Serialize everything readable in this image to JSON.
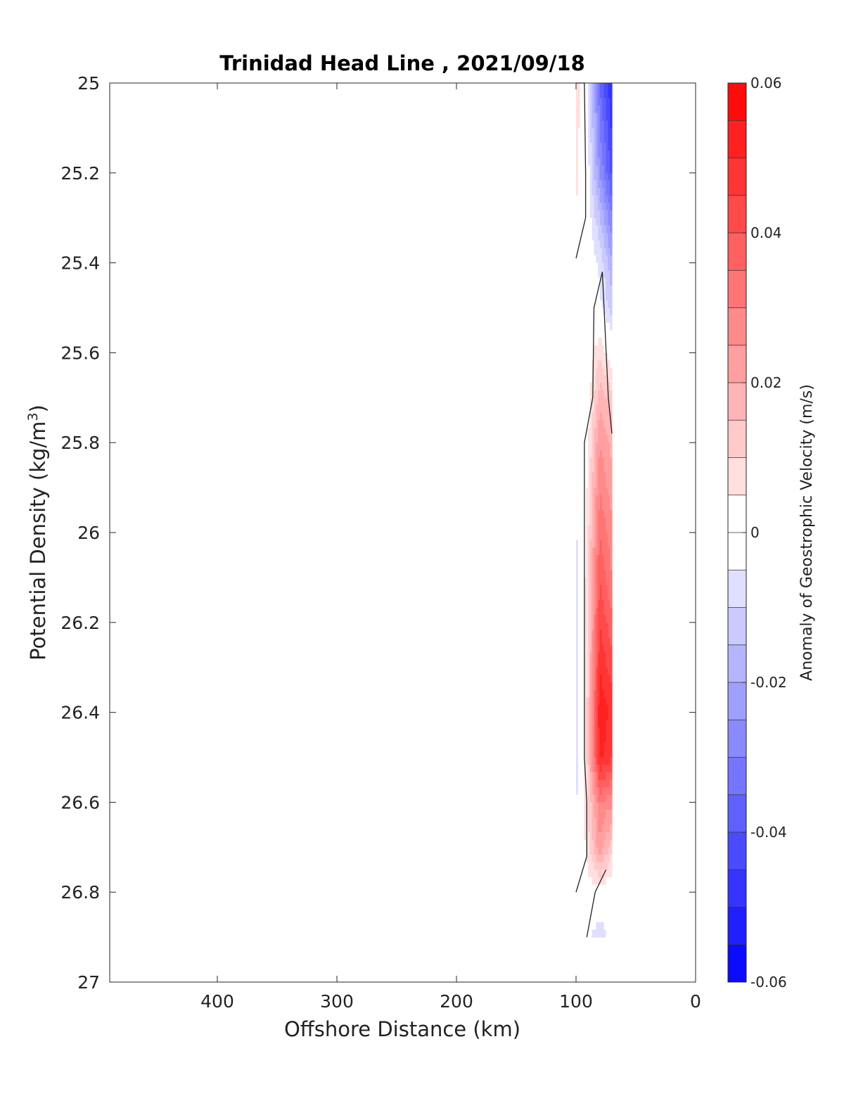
{
  "chart_data": {
    "type": "heatmap",
    "title": "Trinidad Head Line , 2021/09/18",
    "xlabel": "Offshore Distance (km)",
    "ylabel_main": "Potential Density (kg/m",
    "ylabel_sup": "3",
    "ylabel_close": ")",
    "xlim": [
      490,
      0
    ],
    "ylim": [
      25,
      27
    ],
    "x_reversed": true,
    "y_reversed": true,
    "xticks": [
      400,
      300,
      200,
      100,
      0
    ],
    "yticks": [
      25,
      25.2,
      25.4,
      25.6,
      25.8,
      26,
      26.2,
      26.4,
      26.6,
      26.8,
      27
    ],
    "ytick_labels": [
      "25",
      "25.2",
      "25.4",
      "25.6",
      "25.8",
      "26",
      "26.2",
      "26.4",
      "26.6",
      "26.8",
      "27"
    ],
    "colorbar": {
      "label": "Anomaly of Geostrophic Velocity (m/s)",
      "range": [
        -0.06,
        0.06
      ],
      "levels": 24,
      "ticks": [
        0.06,
        0.04,
        0.02,
        0,
        -0.02,
        -0.04,
        -0.06
      ],
      "tick_labels": [
        "0.06",
        "0.04",
        "0.02",
        "0",
        "-0.02",
        "-0.04",
        "-0.06"
      ],
      "colormap": "blue-white-red",
      "color_min": "#0000ff",
      "color_zero": "#ffffff",
      "color_max": "#ff0000"
    },
    "x_grid": [
      100,
      90,
      80,
      70
    ],
    "y_grid": [
      25.0,
      25.1,
      25.2,
      25.3,
      25.4,
      25.5,
      25.6,
      25.7,
      25.8,
      25.9,
      26.0,
      26.1,
      26.2,
      26.3,
      26.4,
      26.5,
      26.6,
      26.7,
      26.8,
      26.9
    ],
    "values": [
      [
        0.01,
        -0.005,
        -0.035,
        -0.05
      ],
      [
        0.008,
        -0.004,
        -0.03,
        -0.046
      ],
      [
        0.007,
        -0.003,
        -0.025,
        -0.042
      ],
      [
        0.004,
        -0.002,
        -0.015,
        -0.03
      ],
      [
        0.0,
        0.0,
        -0.006,
        -0.02
      ],
      [
        -0.004,
        -0.002,
        -0.004,
        -0.012
      ],
      [
        -0.004,
        0.0,
        0.01,
        0.0
      ],
      [
        -0.004,
        0.002,
        0.018,
        0.012
      ],
      [
        -0.005,
        0.004,
        0.025,
        0.018
      ],
      [
        -0.006,
        0.006,
        0.03,
        0.022
      ],
      [
        -0.006,
        0.008,
        0.035,
        0.026
      ],
      [
        -0.007,
        0.009,
        0.04,
        0.03
      ],
      [
        -0.008,
        0.01,
        0.045,
        0.036
      ],
      [
        -0.008,
        0.011,
        0.05,
        0.042
      ],
      [
        -0.008,
        0.012,
        0.054,
        0.048
      ],
      [
        -0.008,
        0.012,
        0.052,
        0.045
      ],
      [
        -0.006,
        0.01,
        0.03,
        0.026
      ],
      [
        -0.005,
        0.008,
        0.024,
        0.012
      ],
      [
        -0.004,
        0.002,
        0.002,
        0.0
      ],
      [
        0.0,
        -0.003,
        -0.01,
        0.0
      ]
    ],
    "zero_contours": [
      [
        [
          100,
          25.0
        ],
        [
          93,
          25.0
        ],
        [
          92,
          25.2
        ],
        [
          92,
          25.3
        ],
        [
          100,
          25.39
        ]
      ],
      [
        [
          78,
          25.42
        ],
        [
          85,
          25.5
        ],
        [
          86,
          25.7
        ],
        [
          93,
          25.8
        ],
        [
          93,
          26.0
        ],
        [
          93,
          26.5
        ],
        [
          91,
          26.6
        ],
        [
          91,
          26.72
        ],
        [
          100,
          26.8
        ]
      ],
      [
        [
          78,
          25.42
        ],
        [
          73,
          25.7
        ],
        [
          70,
          25.78
        ]
      ],
      [
        [
          75,
          26.75
        ],
        [
          84,
          26.8
        ],
        [
          91,
          26.9
        ]
      ]
    ]
  }
}
